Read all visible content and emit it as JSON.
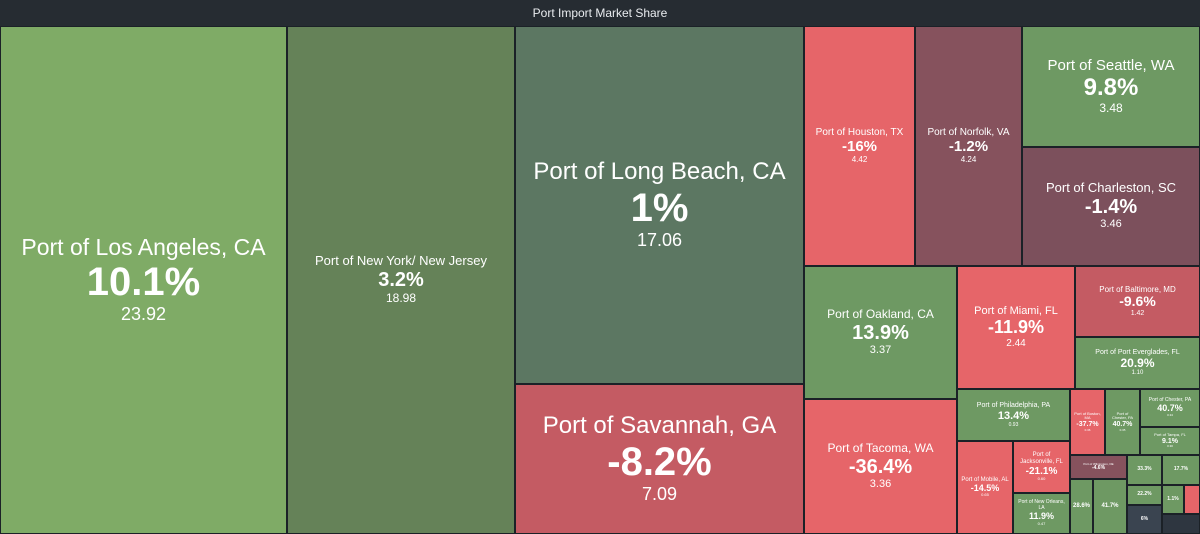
{
  "title": "Port Import Market Share",
  "tiles": [
    {
      "name": "Port of Los Angeles, CA",
      "pct": "10.1%",
      "val": "23.92"
    },
    {
      "name": "Port of New York/ New Jersey",
      "pct": "3.2%",
      "val": "18.98"
    },
    {
      "name": "Port of Long Beach, CA",
      "pct": "1%",
      "val": "17.06"
    },
    {
      "name": "Port of Savannah, GA",
      "pct": "-8.2%",
      "val": "7.09"
    },
    {
      "name": "Port of Houston, TX",
      "pct": "-16%",
      "val": "4.42"
    },
    {
      "name": "Port of Norfolk, VA",
      "pct": "-1.2%",
      "val": "4.24"
    },
    {
      "name": "Port of Seattle, WA",
      "pct": "9.8%",
      "val": "3.48"
    },
    {
      "name": "Port of Charleston, SC",
      "pct": "-1.4%",
      "val": "3.46"
    },
    {
      "name": "Port of Oakland, CA",
      "pct": "13.9%",
      "val": "3.37"
    },
    {
      "name": "Port of Tacoma, WA",
      "pct": "-36.4%",
      "val": "3.36"
    },
    {
      "name": "Port of Miami, FL",
      "pct": "-11.9%",
      "val": "2.44"
    },
    {
      "name": "Port of Baltimore, MD",
      "pct": "-9.6%",
      "val": "1.42"
    },
    {
      "name": "Port of Port Everglades, FL",
      "pct": "20.9%",
      "val": "1.10"
    },
    {
      "name": "Port of Philadelphia, PA",
      "pct": "13.4%",
      "val": "0.93"
    },
    {
      "name": "Port of Jacksonville, FL",
      "pct": "-21.1%",
      "val": "0.60"
    },
    {
      "name": "Port of Mobile, AL",
      "pct": "-14.5%",
      "val": "0.65"
    },
    {
      "name": "Port of New Orleans, LA",
      "pct": "11.9%",
      "val": "0.47"
    },
    {
      "name": "Port of Boston, MA",
      "pct": "-37.7%",
      "val": "0.36"
    },
    {
      "name": "Port of Chester, PA",
      "pct": "40.7%",
      "val": "0.35"
    },
    {
      "name": "Port of Chester, PA",
      "pct": "40.7%",
      "val": "0.34"
    },
    {
      "name": "Port of Tampa, FL",
      "pct": "9.1%",
      "val": "0.30"
    },
    {
      "name": "Port of Wilmington, DE",
      "pct": "-4.6%",
      "val": ""
    },
    {
      "name": "",
      "pct": "33.3%",
      "val": ""
    },
    {
      "name": "",
      "pct": "17.7%",
      "val": ""
    },
    {
      "name": "",
      "pct": "41.7%",
      "val": ""
    },
    {
      "name": "",
      "pct": "28.6%",
      "val": ""
    },
    {
      "name": "",
      "pct": "22.2%",
      "val": ""
    },
    {
      "name": "",
      "pct": "6%",
      "val": ""
    },
    {
      "name": "",
      "pct": "1.1%",
      "val": ""
    },
    {
      "name": "",
      "pct": "",
      "val": ""
    },
    {
      "name": "",
      "pct": "",
      "val": ""
    }
  ]
}
